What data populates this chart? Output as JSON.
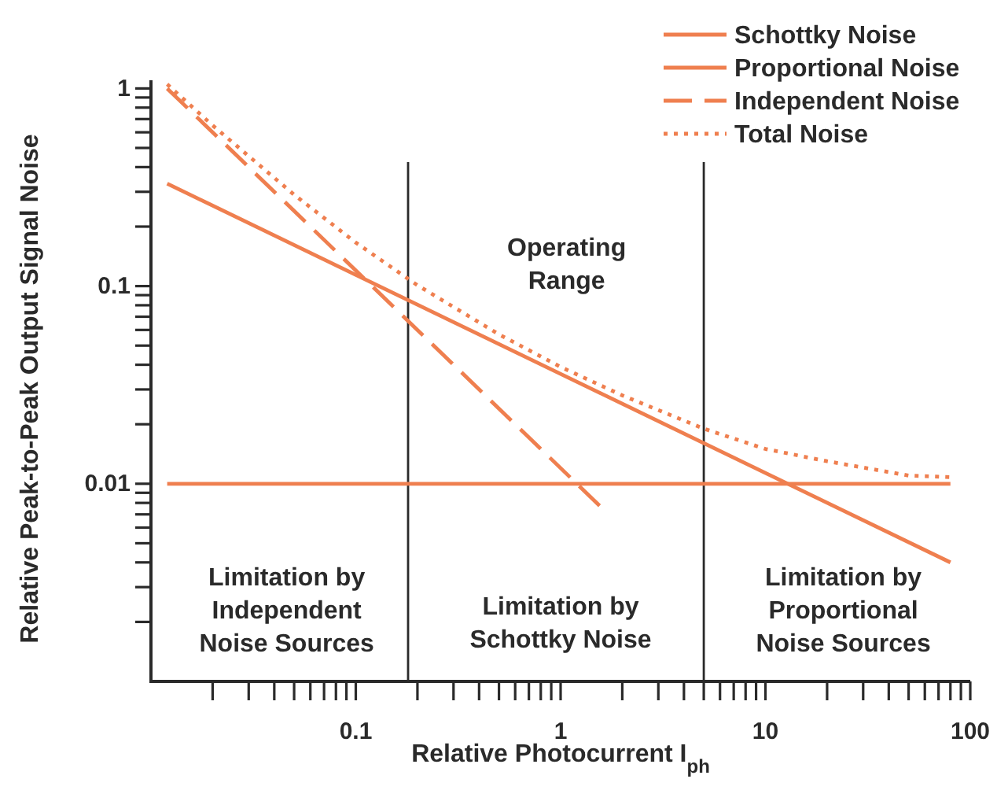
{
  "chart_data": {
    "type": "line",
    "xlabel": "Relative Photocurrent I$_{ph}$",
    "ylabel": "Relative Peak-to-Peak Output Signal Noise",
    "log": "xy",
    "legend": "top right",
    "grid": false,
    "xlim": [
      0.01,
      100
    ],
    "ylim": [
      0.001,
      1.1
    ],
    "xticks": [
      {
        "value": 0.02,
        "label": null
      },
      {
        "value": 0.03,
        "label": null
      },
      {
        "value": 0.04,
        "label": null
      },
      {
        "value": 0.05,
        "label": null
      },
      {
        "value": 0.06,
        "label": null
      },
      {
        "value": 0.07,
        "label": null
      },
      {
        "value": 0.08,
        "label": null
      },
      {
        "value": 0.09,
        "label": null
      },
      0.1,
      {
        "value": 0.2,
        "label": null
      },
      {
        "value": 0.3,
        "label": null
      },
      {
        "value": 0.4,
        "label": null
      },
      {
        "value": 0.5,
        "label": null
      },
      {
        "value": 0.6,
        "label": null
      },
      {
        "value": 0.7,
        "label": null
      },
      {
        "value": 0.8,
        "label": null
      },
      {
        "value": 0.9,
        "label": null
      },
      1,
      {
        "value": 2,
        "label": null
      },
      {
        "value": 3,
        "label": null
      },
      {
        "value": 4,
        "label": null
      },
      {
        "value": 5,
        "label": null
      },
      {
        "value": 6,
        "label": null
      },
      {
        "value": 7,
        "label": null
      },
      {
        "value": 8,
        "label": null
      },
      {
        "value": 9,
        "label": null
      },
      10,
      {
        "value": 20,
        "label": null
      },
      {
        "value": 30,
        "label": null
      },
      {
        "value": 40,
        "label": null
      },
      {
        "value": 50,
        "label": null
      },
      {
        "value": 60,
        "label": null
      },
      {
        "value": 70,
        "label": null
      },
      {
        "value": 80,
        "label": null
      },
      {
        "value": 90,
        "label": null
      },
      100
    ],
    "yticks": [
      {
        "value": 0.002,
        "label": null
      },
      {
        "value": 0.003,
        "label": null
      },
      {
        "value": 0.004,
        "label": null
      },
      {
        "value": 0.005,
        "label": null
      },
      {
        "value": 0.006,
        "label": null
      },
      {
        "value": 0.007,
        "label": null
      },
      {
        "value": 0.008,
        "label": null
      },
      {
        "value": 0.009,
        "label": null
      },
      0.01,
      {
        "value": 0.02,
        "label": null
      },
      {
        "value": 0.03,
        "label": null
      },
      {
        "value": 0.04,
        "label": null
      },
      {
        "value": 0.05,
        "label": null
      },
      {
        "value": 0.06,
        "label": null
      },
      {
        "value": 0.07,
        "label": null
      },
      {
        "value": 0.08,
        "label": null
      },
      {
        "value": 0.09,
        "label": null
      },
      0.1,
      {
        "value": 0.2,
        "label": null
      },
      {
        "value": 0.3,
        "label": null
      },
      {
        "value": 0.4,
        "label": null
      },
      {
        "value": 0.5,
        "label": null
      },
      {
        "value": 0.6,
        "label": null
      },
      {
        "value": 0.7,
        "label": null
      },
      {
        "value": 0.8,
        "label": null
      },
      {
        "value": 0.9,
        "label": null
      },
      1
    ],
    "series": [
      {
        "name": "Schottky Noise",
        "color": "#ef7f4f",
        "line_style": "solid",
        "x": [
          0.012,
          80
        ],
        "values": [
          0.33,
          0.004
        ]
      },
      {
        "name": "Proportional Noise",
        "color": "#ef7f4f",
        "line_style": "solid",
        "x": [
          0.012,
          80
        ],
        "values": [
          0.01,
          0.01
        ]
      },
      {
        "name": "Independent Noise",
        "color": "#ef7f4f",
        "line_style": "dashed",
        "x": [
          0.012,
          1.6
        ],
        "values": [
          1,
          0.0075
        ]
      },
      {
        "name": "Total Noise",
        "color": "#ef7f4f",
        "line_style": "dotted",
        "x": [
          0.012,
          0.02,
          0.05,
          0.1,
          0.2,
          0.5,
          1,
          2,
          5,
          10,
          20,
          50,
          80
        ],
        "values": [
          1.05,
          0.65,
          0.29,
          0.166,
          0.101,
          0.057,
          0.039,
          0.028,
          0.019,
          0.015,
          0.013,
          0.011,
          0.0108
        ]
      }
    ],
    "ref_lines": [
      {
        "axis": "x",
        "value": 0.18,
        "color": "#2a2a2a"
      },
      {
        "axis": "x",
        "value": 5,
        "color": "#2a2a2a"
      }
    ],
    "annotations": [
      "Operating\nRange",
      "Limitation by\nIndependent\nNoise Sources",
      "Limitation by\nSchottky Noise",
      "Limitation by\nProportional\nNoise Sources"
    ]
  }
}
